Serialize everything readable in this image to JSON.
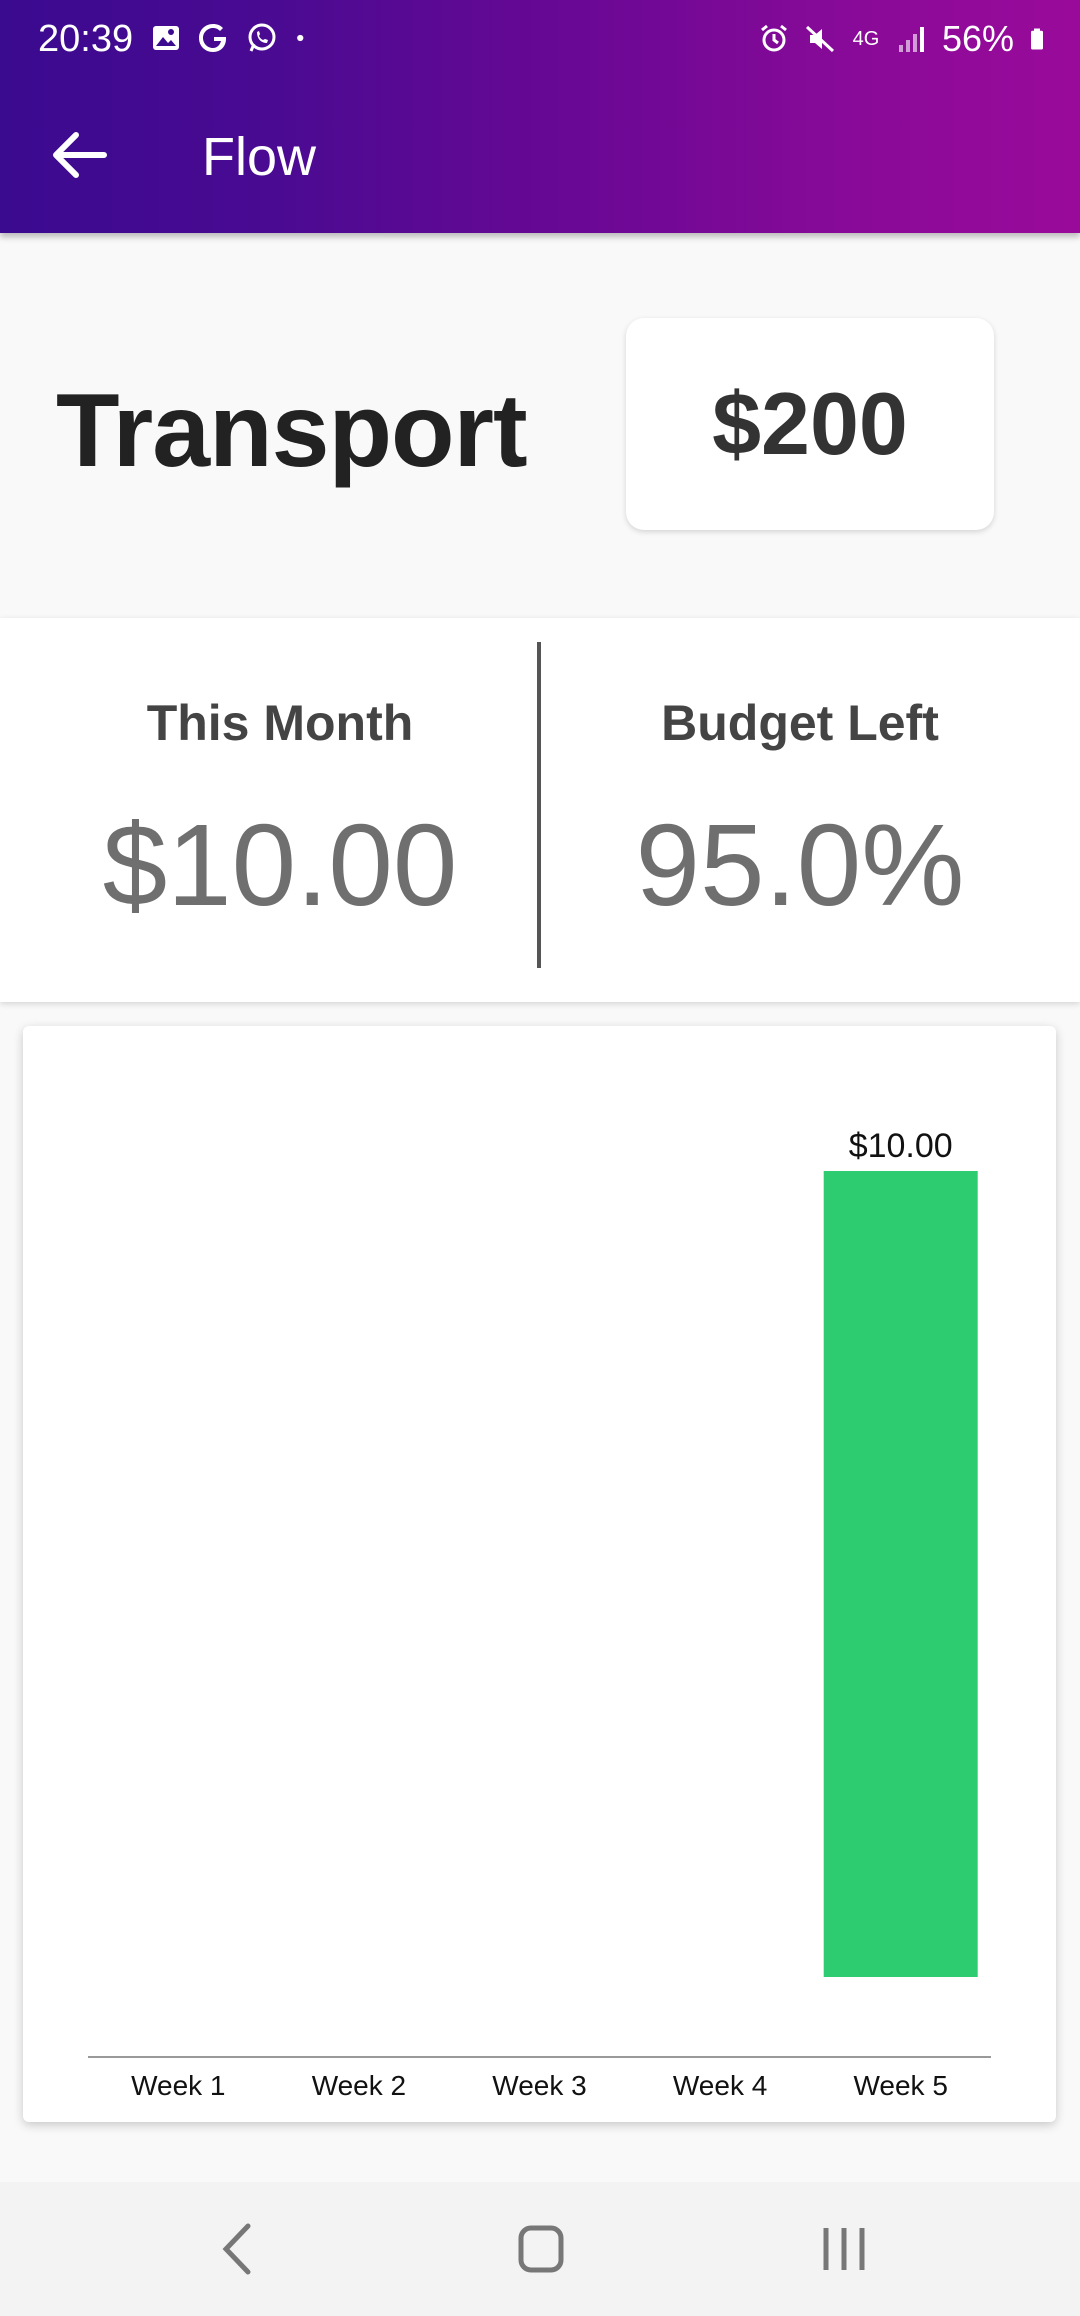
{
  "status_bar": {
    "time": "20:39",
    "battery": "56%",
    "network": "4G",
    "left_icons": [
      "gallery-icon",
      "google-icon",
      "whatsapp-icon",
      "dot-icon"
    ],
    "right_icons": [
      "alarm-icon",
      "mute-icon",
      "network-4g-icon",
      "signal-icon",
      "battery-icon"
    ]
  },
  "app_bar": {
    "title": "Flow",
    "back_icon": "arrow-left-icon"
  },
  "category": {
    "name": "Transport",
    "budget": "$200"
  },
  "stats": {
    "this_month_label": "This Month",
    "this_month_value": "$10.00",
    "budget_left_label": "Budget Left",
    "budget_left_value": "95.0%"
  },
  "colors": {
    "accent": "#6b0895",
    "bar": "#2ecc71"
  },
  "chart_data": {
    "type": "bar",
    "categories": [
      "Week 1",
      "Week 2",
      "Week 3",
      "Week 4",
      "Week 5"
    ],
    "values": [
      0,
      0,
      0,
      0,
      10
    ],
    "data_labels": [
      "",
      "",
      "",
      "",
      "$10.00"
    ],
    "ylim": [
      0,
      10
    ],
    "grid": false
  },
  "nav_bar": {
    "icons": [
      "back-nav-icon",
      "home-nav-icon",
      "recents-nav-icon"
    ]
  }
}
